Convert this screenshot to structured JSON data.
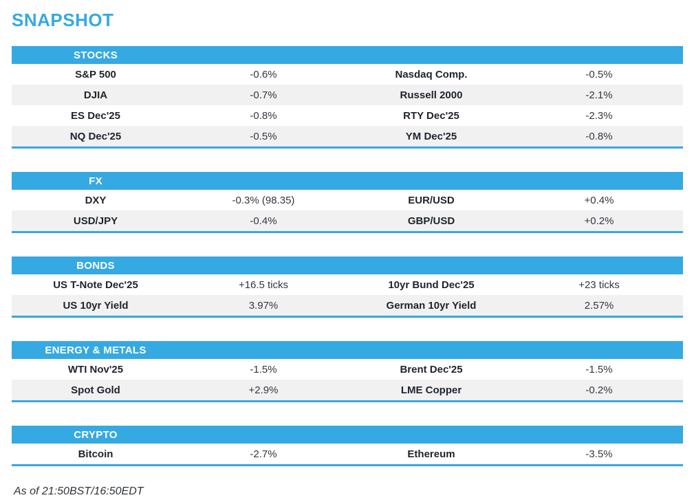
{
  "page": {
    "title": "SNAPSHOT",
    "footer": "As of 21:50BST/16:50EDT"
  },
  "colors": {
    "accent": "#35A9E2",
    "row_alt": "#F1F1F2",
    "header_text": "#FFFFFF",
    "label_text": "#1F242B",
    "value_text": "#33373D"
  },
  "sections": [
    {
      "name": "STOCKS",
      "rows": [
        [
          "S&P 500",
          "-0.6%",
          "Nasdaq Comp.",
          "-0.5%"
        ],
        [
          "DJIA",
          "-0.7%",
          "Russell 2000",
          "-2.1%"
        ],
        [
          "ES Dec'25",
          "-0.8%",
          "RTY Dec'25",
          "-2.3%"
        ],
        [
          "NQ Dec'25",
          "-0.5%",
          "YM Dec'25",
          "-0.8%"
        ]
      ]
    },
    {
      "name": "FX",
      "rows": [
        [
          "DXY",
          "-0.3% (98.35)",
          "EUR/USD",
          "+0.4%"
        ],
        [
          "USD/JPY",
          "-0.4%",
          "GBP/USD",
          "+0.2%"
        ]
      ]
    },
    {
      "name": "BONDS",
      "rows": [
        [
          "US T-Note Dec'25",
          "+16.5 ticks",
          "10yr Bund Dec'25",
          "+23 ticks"
        ],
        [
          "US 10yr Yield",
          "3.97%",
          "German 10yr Yield",
          "2.57%"
        ]
      ]
    },
    {
      "name": "ENERGY & METALS",
      "rows": [
        [
          "WTI Nov'25",
          "-1.5%",
          "Brent Dec'25",
          "-1.5%"
        ],
        [
          "Spot Gold",
          "+2.9%",
          "LME Copper",
          "-0.2%"
        ]
      ]
    },
    {
      "name": "CRYPTO",
      "rows": [
        [
          "Bitcoin",
          "-2.7%",
          "Ethereum",
          "-3.5%"
        ]
      ]
    }
  ]
}
